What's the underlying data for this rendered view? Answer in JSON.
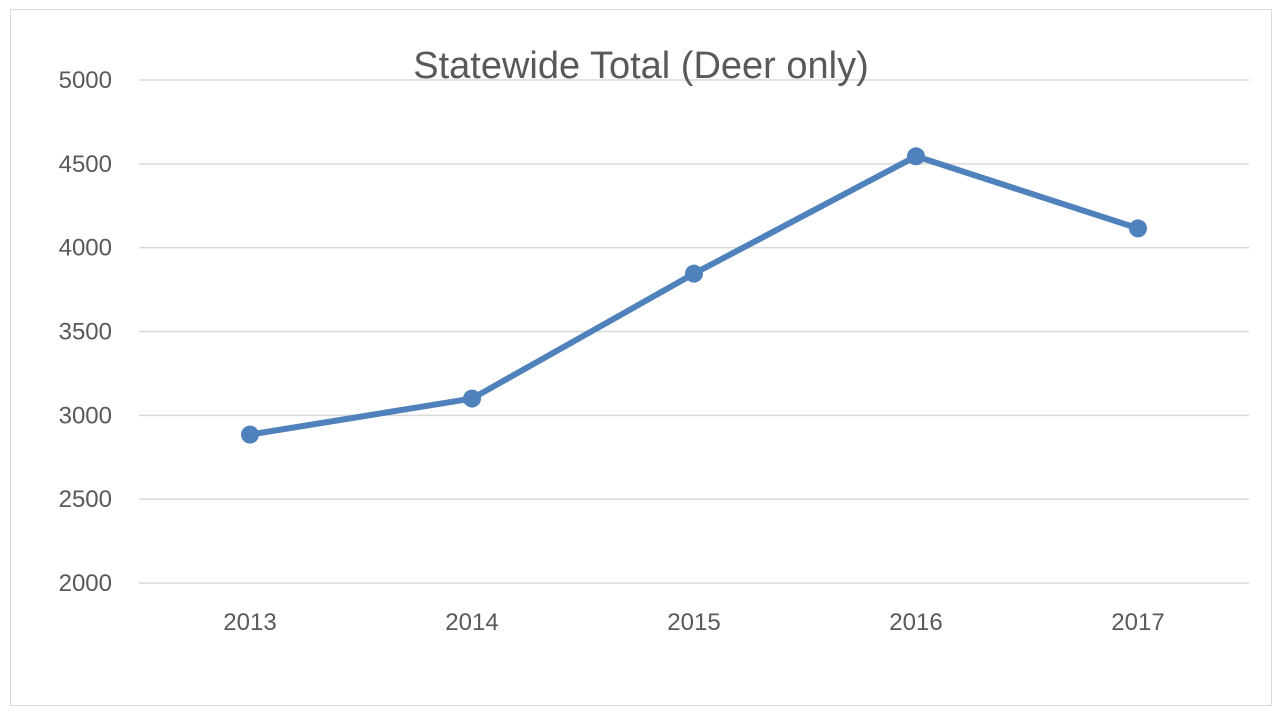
{
  "chart_data": {
    "type": "line",
    "title": "Statewide Total (Deer only)",
    "xlabel": "",
    "ylabel": "",
    "categories": [
      "2013",
      "2014",
      "2015",
      "2016",
      "2017"
    ],
    "series": [
      {
        "values": [
          2885,
          3100,
          3845,
          4545,
          4115
        ]
      }
    ],
    "ylim": [
      2000,
      5000
    ],
    "yticks": [
      2000,
      2500,
      3000,
      3500,
      4000,
      4500,
      5000
    ],
    "grid": true,
    "legend": "none",
    "colors": {
      "series": "#4f81bd",
      "grid": "#d9d9d9",
      "text": "#595959",
      "border": "#d9d9d9"
    }
  }
}
